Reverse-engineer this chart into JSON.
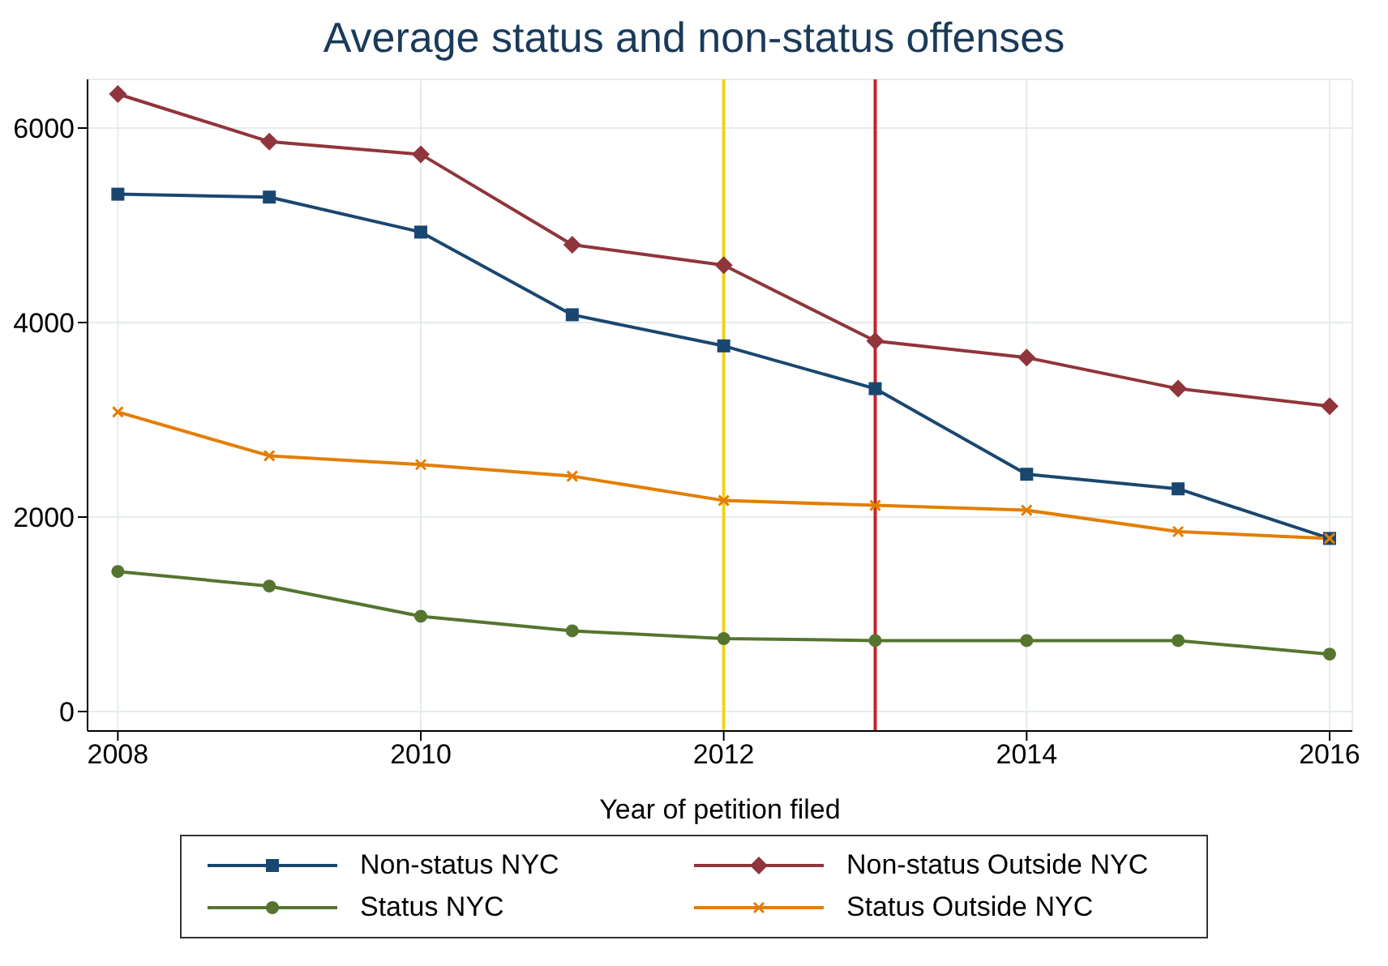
{
  "chart_data": {
    "type": "line",
    "title": "Average status and non-status offenses",
    "xlabel": "Year of petition filed",
    "x": [
      2008,
      2009,
      2010,
      2011,
      2012,
      2013,
      2014,
      2015,
      2016
    ],
    "xlim": [
      2007.8,
      2016.15
    ],
    "xticks": [
      2008,
      2010,
      2012,
      2014,
      2016
    ],
    "ylim": [
      -200,
      6500
    ],
    "yticks": [
      0,
      2000,
      4000,
      6000
    ],
    "grid": true,
    "legend": "bottom",
    "series": [
      {
        "name": "Non-status NYC",
        "color": "#1a476f",
        "marker": "square",
        "values": [
          5320,
          5290,
          4930,
          4080,
          3760,
          3320,
          2440,
          2290,
          1780
        ]
      },
      {
        "name": "Non-status Outside NYC",
        "color": "#90353b",
        "marker": "diamond",
        "values": [
          6350,
          5860,
          5730,
          4800,
          4590,
          3810,
          3640,
          3320,
          3140
        ]
      },
      {
        "name": "Status NYC",
        "color": "#55752f",
        "marker": "circle",
        "values": [
          1440,
          1290,
          980,
          830,
          750,
          730,
          730,
          730,
          590
        ]
      },
      {
        "name": "Status Outside NYC",
        "color": "#e37e00",
        "marker": "cross",
        "values": [
          3080,
          2630,
          2540,
          2420,
          2170,
          2120,
          2070,
          1850,
          1780
        ]
      }
    ],
    "ref_lines": [
      {
        "axis": "x",
        "value": 2012,
        "color": "#f2d21c"
      },
      {
        "axis": "x",
        "value": 2013,
        "color": "#c8202a"
      }
    ]
  }
}
